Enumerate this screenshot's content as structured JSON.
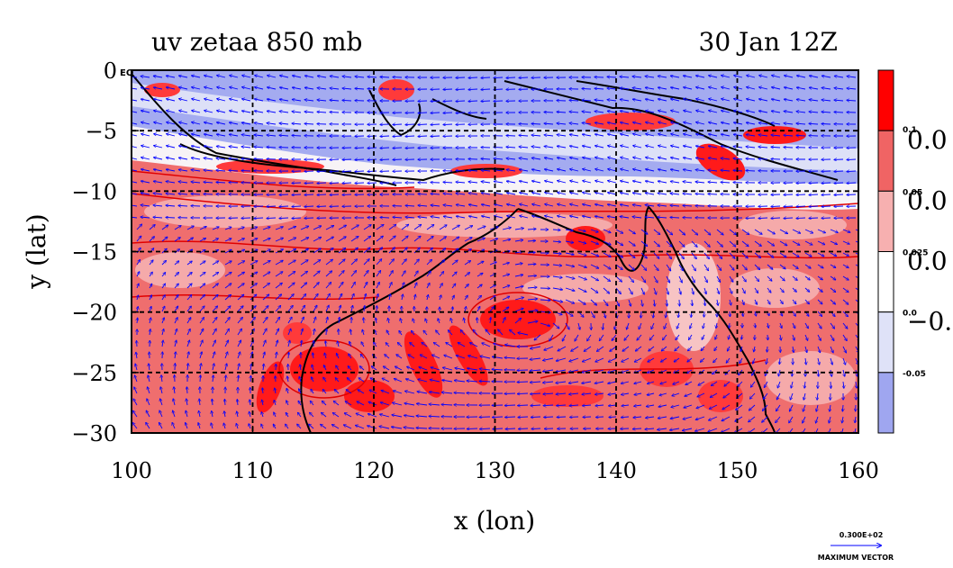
{
  "chart_data": {
    "type": "heatmap",
    "title_left": "uv zetaa 850 mb",
    "title_right": "30 Jan 12Z",
    "xlabel": "x (lon)",
    "ylabel": "y (lat)",
    "xlim": [
      100,
      160
    ],
    "ylim": [
      -30,
      0
    ],
    "x_ticks": [
      "100",
      "110",
      "120",
      "130",
      "140",
      "150",
      "160"
    ],
    "y_ticks": [
      "0",
      "−5",
      "−10",
      "−15",
      "−20",
      "−25",
      "−30"
    ],
    "grid": true,
    "grid_style": "dashed",
    "colorbar": {
      "levels": [
        "0.1",
        "0.05",
        "0.025",
        "0.0",
        "-0.05"
      ],
      "large_labels": [
        "0.0",
        "0.0",
        "0.0",
        "−0."
      ],
      "colors": [
        "#ff0000",
        "#f06464",
        "#f7b0b0",
        "#ffffff",
        "#dfe2f8",
        "#9fa6f0"
      ]
    },
    "fields": {
      "north_band": "negative (blue)",
      "south_region": "positive (red)",
      "vector_color": "#0000ff",
      "contour_color": "#ff0000"
    },
    "max_vector": {
      "value": "0.300E+02",
      "label": "MAXIMUM VECTOR"
    },
    "corner_label": "EQ"
  }
}
